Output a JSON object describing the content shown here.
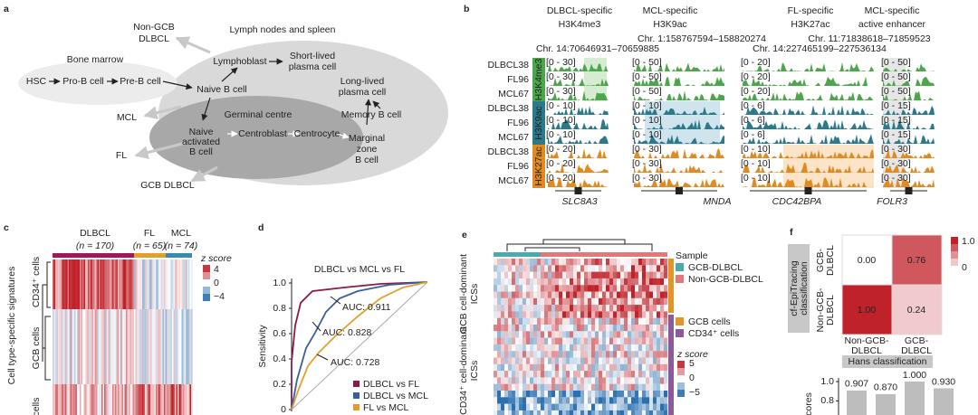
{
  "panel_a": {
    "label": "a",
    "non_gcb_dlbcl": [
      "Non-GCB",
      "DLBCL"
    ],
    "lymph_nodes": "Lymph nodes and spleen",
    "bone_marrow": "Bone marrow",
    "hsc": "HSC",
    "pro_b": "Pro-B cell",
    "pre_b": "Pre-B cell",
    "lymphoblast": "Lymphoblast",
    "short_lived": [
      "Short-lived",
      "plasma cell"
    ],
    "naive_b": "Naive B cell",
    "long_lived": [
      "Long-lived",
      "plasma cell"
    ],
    "germinal_centre": "Germinal centre",
    "memory_b": "Memory B cell",
    "mcl": "MCL",
    "naive_activated": [
      "Naive",
      "activated",
      "B cell"
    ],
    "centroblast": "Centroblast",
    "centrocyte": "Centrocyte",
    "marginal_zone": [
      "Marginal",
      "zone",
      "B cell"
    ],
    "fl": "FL",
    "gcb_dlbcl": "GCB DLBCL"
  },
  "panel_b": {
    "label": "b",
    "samples": [
      {
        "name": "DLBCL38",
        "color": "#a0175a"
      },
      {
        "name": "FL96",
        "color": "#e0a030"
      },
      {
        "name": "MCL67",
        "color": "#3a7ab0"
      }
    ],
    "marks": [
      {
        "name": "H3K4me3",
        "color": "#4ca64c"
      },
      {
        "name": "H3K9ac",
        "color": "#2a7a8c"
      },
      {
        "name": "H3K27ac",
        "color": "#e08a20"
      }
    ],
    "columns": [
      {
        "header": [
          "DLBCL-specific",
          "H3K4me3"
        ],
        "locus": "Chr. 14:70646931–70659885",
        "gene": "SLC8A3",
        "ranges": [
          "[0 - 30]",
          "[0 - 30]",
          "[0 - 30]",
          "[0 - 10]",
          "[0 - 10]",
          "[0 - 10]",
          "[0 - 20]",
          "[0 - 20]",
          "[0 - 20]"
        ]
      },
      {
        "header": [
          "MCL-specific",
          "H3K9ac"
        ],
        "locus": "Chr. 1:158767594–158820274",
        "gene": "MNDA",
        "ranges": [
          "[0 - 50]",
          "[0 - 50]",
          "[0 - 50]",
          "[0 - 10]",
          "[0 - 10]",
          "[0 - 10]",
          "[0 - 30]",
          "[0 - 30]",
          "[0 - 30]"
        ]
      },
      {
        "header": [
          "FL-specific",
          "H3K27ac"
        ],
        "locus": "Chr. 11:71838618–71859523",
        "gene": "CDC42BPA",
        "ranges": [
          "[0 - 20]",
          "[0 - 20]",
          "[0 - 20]",
          "[0 - 6]",
          "[0 - 6]",
          "[0 - 6]",
          "[0 - 10]",
          "[0 - 10]",
          "[0 - 10]"
        ]
      },
      {
        "header": [
          "MCL-specific",
          "active enhancer"
        ],
        "locus": "Chr. 14:227465199–227536134",
        "gene": "FOLR3",
        "ranges": [
          "[0 - 50]",
          "[0 - 50]",
          "[0 - 50]",
          "[0 - 15]",
          "[0 - 15]",
          "[0 - 15]",
          "[0 - 30]",
          "[0 - 30]",
          "[0 - 30]"
        ]
      }
    ]
  },
  "panel_c": {
    "label": "c",
    "groups": [
      {
        "name": "DLBCL",
        "n": "(n = 170)",
        "color": "#a0175a"
      },
      {
        "name": "FL",
        "n": "(n = 65)",
        "color": "#e0a030"
      },
      {
        "name": "MCL",
        "n": "(n = 74)",
        "color": "#3a8ab0"
      }
    ],
    "zscore": {
      "title": "z score",
      "ticks": [
        "4",
        "0",
        "−4"
      ]
    },
    "y_title": "Cell type-specific signatures",
    "row_groups": [
      "CD34⁺ cells",
      "GCB cells",
      "cells"
    ]
  },
  "panel_d": {
    "label": "d",
    "title": "DLBCL vs MCL vs FL",
    "y_title": "Sensitivity",
    "yticks": [
      "1.0",
      "0.8",
      "0.6",
      "0.4",
      "0.2",
      "0"
    ],
    "auc": [
      "AUC: 0.911",
      "AUC: 0.828",
      "AUC: 0.728"
    ],
    "legend": [
      {
        "name": "DLBCL vs FL",
        "color": "#8b1a4a"
      },
      {
        "name": "DLBCL vs MCL",
        "color": "#3a5f9a"
      },
      {
        "name": "FL vs MCL",
        "color": "#e0a030"
      }
    ]
  },
  "panel_e": {
    "label": "e",
    "row_groups": [
      [
        "GCB cell-dominant",
        "ICSs"
      ],
      [
        "CD34⁺ cell-dominant",
        "ICSs"
      ]
    ],
    "sample_title": "Sample",
    "samples": [
      {
        "name": "GCB-DLBCL",
        "color": "#4aaab0"
      },
      {
        "name": "Non-GCB-DLBCL",
        "color": "#e07a7a"
      }
    ],
    "cell_types": [
      {
        "name": "GCB cells",
        "color": "#e0962a"
      },
      {
        "name": "CD34⁺ cells",
        "color": "#8a5a9a"
      }
    ],
    "zscore": {
      "title": "z score",
      "ticks": [
        "5",
        "0",
        "−5"
      ]
    }
  },
  "panel_f": {
    "label": "f",
    "y_title": [
      "cf-EpiTracing",
      "classification"
    ],
    "rows": [
      [
        "GCB-",
        "DLBCL"
      ],
      [
        "Non-GCB-",
        "DLBCL"
      ]
    ],
    "cols": [
      [
        "Non-GCB-",
        "DLBCL"
      ],
      [
        "GCB-",
        "DLBCL"
      ]
    ],
    "matrix": {
      "values": [
        [
          0,
          0.76
        ],
        [
          1,
          0.24
        ]
      ],
      "value_labels": [
        [
          "0.00",
          "0.76"
        ],
        [
          "1.00",
          "0.24"
        ]
      ]
    },
    "x_title": "Hans classification",
    "colorbar": [
      "1.0",
      "0"
    ],
    "bars": {
      "values": [
        0.907,
        0.87,
        1,
        0.93
      ],
      "value_labels": [
        "0.907",
        "0.870",
        "1.000",
        "0.930"
      ],
      "yticks": [
        {
          "value": 1,
          "label": "1.0"
        },
        {
          "value": 0.8,
          "label": "0.8"
        }
      ],
      "y_title": "cores"
    }
  }
}
